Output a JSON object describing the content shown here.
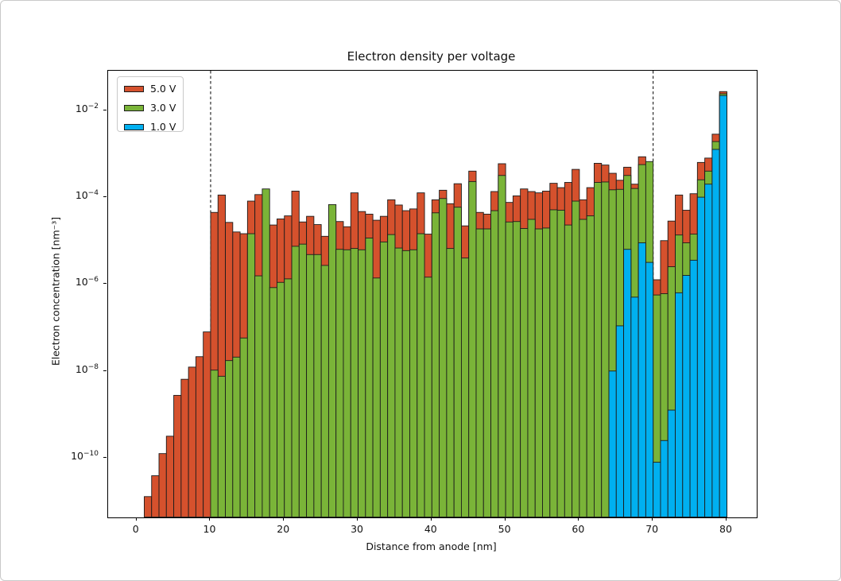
{
  "figure": {
    "title": "Electron density per voltage"
  },
  "axes": {
    "xlabel": "Distance from anode [nm]",
    "ylabel": "Electron concentration [nm⁻³]",
    "x_tick_values": [
      0,
      10,
      20,
      30,
      40,
      50,
      60,
      70,
      80
    ],
    "x_tick_labels": [
      "0",
      "10",
      "20",
      "30",
      "40",
      "50",
      "60",
      "70",
      "80"
    ],
    "y_tick_base": "10",
    "y_tick_exponents": [
      "−2",
      "−4",
      "−6",
      "−8",
      "−10"
    ],
    "y_tick_log_values": [
      -2,
      -4,
      -6,
      -8,
      -10
    ]
  },
  "chart_data": {
    "type": "bar",
    "title": "Electron density per voltage",
    "xlabel": "Distance from anode [nm]",
    "ylabel": "Electron concentration [nm⁻³]",
    "y_scale": "log10",
    "xlim": [
      -3.9,
      84.1
    ],
    "ylim_log10": [
      -11.36,
      -1.09
    ],
    "bar_width": 1,
    "x_start": 1,
    "x_end": 80,
    "grid": false,
    "legend_position": "upper-left",
    "vlines_x": [
      10,
      70
    ],
    "vline_style": "dashed-black",
    "edge_color": "#1c1c1c",
    "series": [
      {
        "name": "5.0 V",
        "color": "#d5512d",
        "log10_values": [
          -10.89,
          -10.41,
          -9.9,
          -9.5,
          -8.56,
          -8.19,
          -7.91,
          -7.67,
          -7.1,
          -4.35,
          -3.95,
          -4.58,
          -4.8,
          -4.84,
          -4.09,
          -3.94,
          null,
          -4.64,
          -4.5,
          -4.43,
          -3.86,
          -4.57,
          -4.44,
          -4.63,
          -4.9,
          null,
          -4.56,
          -4.68,
          -3.9,
          -4.33,
          -4.39,
          -4.53,
          -4.44,
          -4.06,
          -4.18,
          -4.31,
          -4.27,
          -3.9,
          -4.85,
          -4.06,
          -3.84,
          -4.15,
          -3.69,
          -4.66,
          -3.4,
          -4.35,
          -4.39,
          -3.87,
          -3.23,
          -4.12,
          -3.97,
          -3.81,
          -3.87,
          -3.9,
          -3.86,
          -3.68,
          -3.78,
          -3.66,
          -3.36,
          -4.06,
          -3.78,
          -3.22,
          -3.26,
          -3.45,
          -3.61,
          -3.31,
          -3.7,
          -3.07,
          null,
          -5.9,
          -5.0,
          -4.55,
          -3.95,
          -4.3,
          -3.92,
          -3.2,
          -3.1,
          -2.55,
          -1.57
        ]
      },
      {
        "name": "3.0 V",
        "color": "#7ab438",
        "log10_values": [
          null,
          null,
          null,
          null,
          null,
          null,
          null,
          null,
          null,
          -7.98,
          -8.12,
          -7.76,
          -7.68,
          -7.24,
          -4.84,
          -5.81,
          -3.81,
          -6.08,
          -5.96,
          -5.88,
          -5.13,
          -5.08,
          -5.32,
          -5.32,
          -5.57,
          -4.17,
          -5.2,
          -5.21,
          -5.18,
          -5.21,
          -4.94,
          -5.86,
          -5.03,
          -4.86,
          -5.17,
          -5.23,
          -5.21,
          -4.84,
          -5.84,
          -4.36,
          -4.03,
          -5.18,
          -4.23,
          -5.4,
          -3.64,
          -4.73,
          -4.73,
          -4.31,
          -3.5,
          -4.57,
          -4.56,
          -4.72,
          -4.51,
          -4.73,
          -4.71,
          -4.29,
          -4.3,
          -4.64,
          -4.09,
          -4.51,
          -4.43,
          -3.66,
          -3.65,
          -3.83,
          -3.82,
          -3.5,
          -3.8,
          -3.25,
          -3.18,
          -6.25,
          -6.22,
          -5.6,
          -4.87,
          -5.05,
          -4.85,
          -3.6,
          -3.4,
          -2.72,
          -1.62
        ]
      },
      {
        "name": "1.0 V",
        "color": "#00b0f0",
        "log10_values": [
          null,
          null,
          null,
          null,
          null,
          null,
          null,
          null,
          null,
          null,
          null,
          null,
          null,
          null,
          null,
          null,
          null,
          null,
          null,
          null,
          null,
          null,
          null,
          null,
          null,
          null,
          null,
          null,
          null,
          null,
          null,
          null,
          null,
          null,
          null,
          null,
          null,
          null,
          null,
          null,
          null,
          null,
          null,
          null,
          null,
          null,
          null,
          null,
          null,
          null,
          null,
          null,
          null,
          null,
          null,
          null,
          null,
          null,
          null,
          null,
          null,
          null,
          null,
          -8.0,
          -6.96,
          -5.2,
          -6.3,
          -5.05,
          -5.5,
          -10.1,
          -9.6,
          -8.9,
          -6.2,
          -5.8,
          -5.45,
          -4.0,
          -3.7,
          -2.9,
          -1.66
        ]
      }
    ]
  }
}
